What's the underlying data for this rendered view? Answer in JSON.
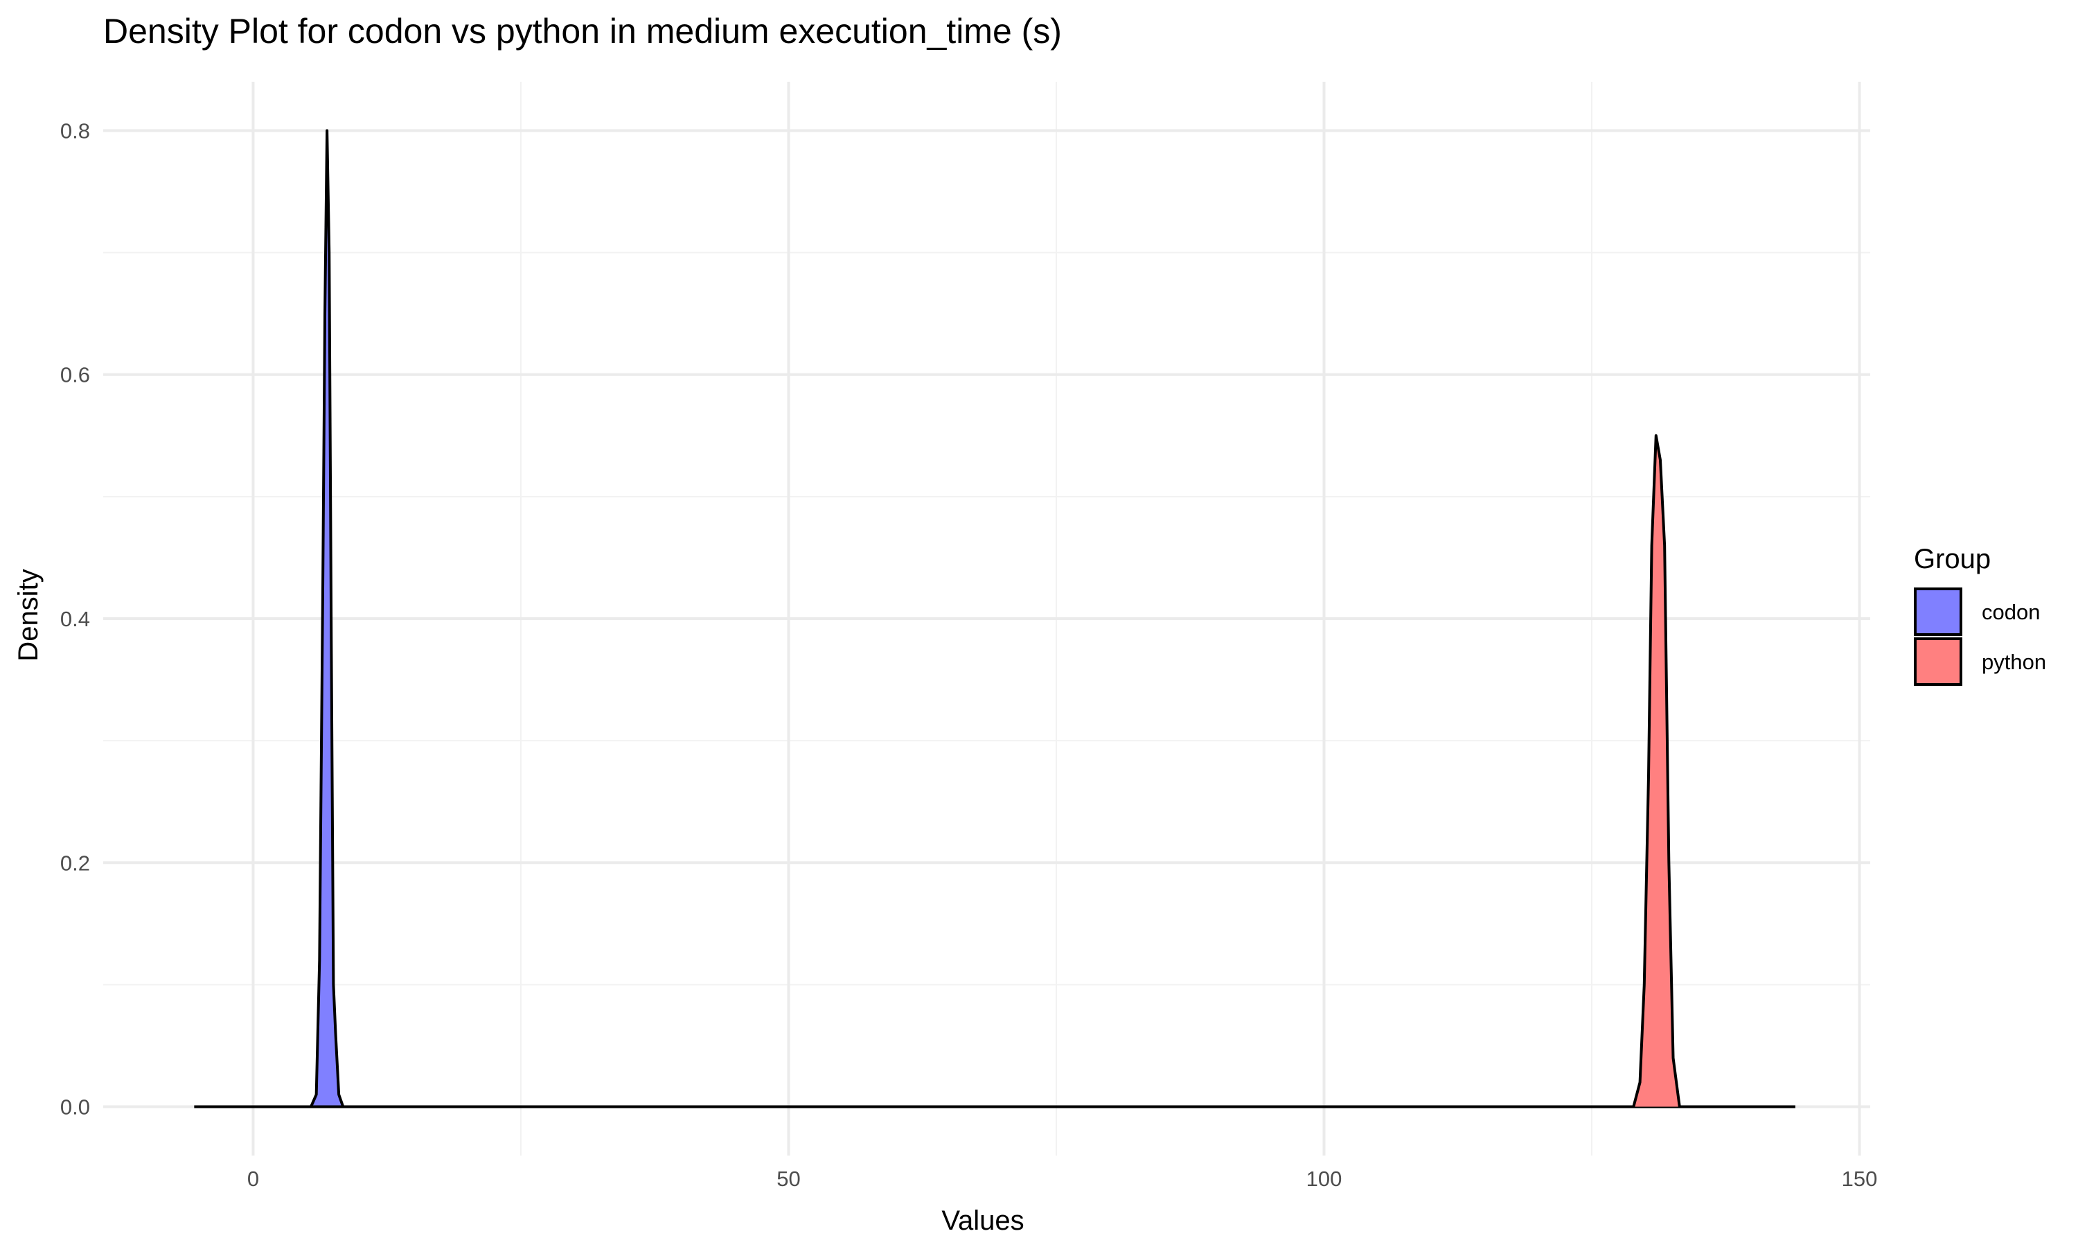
{
  "chart_data": {
    "type": "area",
    "title": "Density Plot for codon vs python in medium execution_time (s)",
    "xlabel": "Values",
    "ylabel": "Density",
    "xlim": [
      -14,
      151
    ],
    "ylim": [
      -0.04,
      0.84
    ],
    "x_ticks": [
      0,
      50,
      100,
      150
    ],
    "x_tick_labels": [
      "0",
      "50",
      "100",
      "150"
    ],
    "y_ticks": [
      0.0,
      0.2,
      0.4,
      0.6,
      0.8
    ],
    "y_tick_labels": [
      "0.0",
      "0.2",
      "0.4",
      "0.6",
      "0.8"
    ],
    "grid": true,
    "legend": {
      "title": "Group",
      "position": "right"
    },
    "series": [
      {
        "name": "codon",
        "color": "#8080ff",
        "line_color": "#000000",
        "x": [
          -5.5,
          5.4,
          5.9,
          6.2,
          6.5,
          6.7,
          6.9,
          7.1,
          7.3,
          7.5,
          7.7,
          8.0,
          8.4,
          144.0
        ],
        "y": [
          0.0,
          0.0,
          0.01,
          0.12,
          0.42,
          0.65,
          0.8,
          0.7,
          0.38,
          0.1,
          0.06,
          0.01,
          0.0,
          0.0
        ]
      },
      {
        "name": "python",
        "color": "#ff8080",
        "line_color": "#000000",
        "x": [
          -5.5,
          128.9,
          129.5,
          129.9,
          130.3,
          130.6,
          131.0,
          131.4,
          131.8,
          132.2,
          132.6,
          133.2,
          144.0
        ],
        "y": [
          0.0,
          0.0,
          0.02,
          0.1,
          0.27,
          0.46,
          0.55,
          0.53,
          0.46,
          0.2,
          0.04,
          0.0,
          0.0
        ]
      }
    ]
  }
}
